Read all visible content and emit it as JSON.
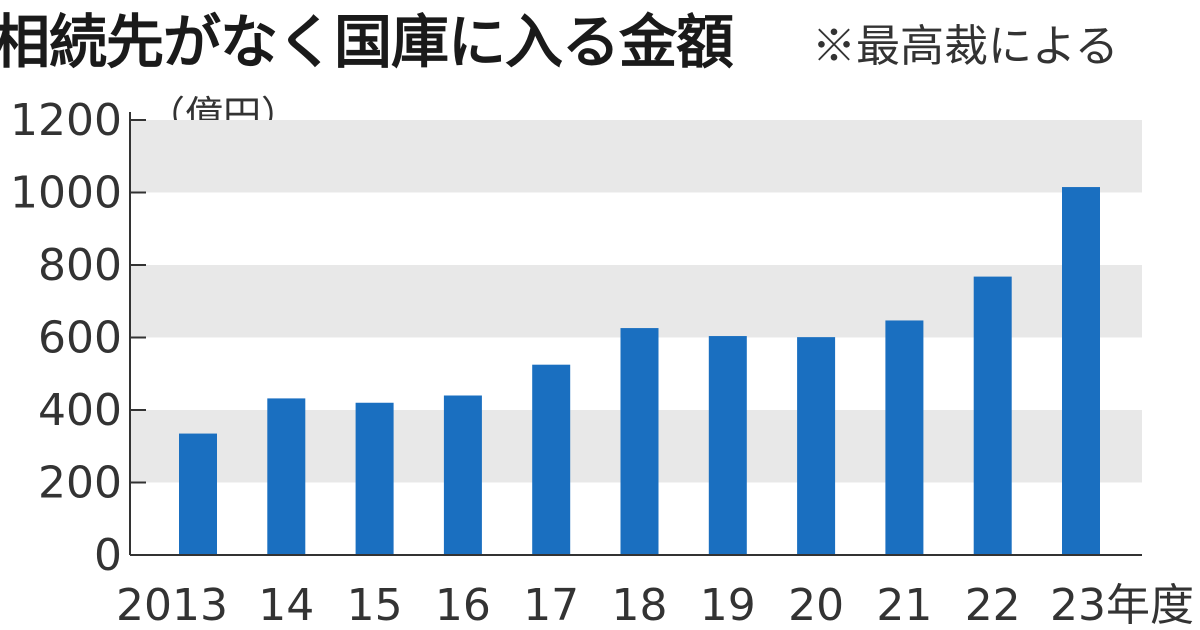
{
  "chart_data": {
    "type": "bar",
    "title": "相続先がなく国庫に入る金額",
    "subtitle": "※最高裁による",
    "unit_label": "（億円）",
    "categories": [
      "2013",
      "14",
      "15",
      "16",
      "17",
      "18",
      "19",
      "20",
      "21",
      "22",
      "23年度"
    ],
    "values": [
      335,
      432,
      420,
      440,
      525,
      626,
      604,
      601,
      647,
      768,
      1015
    ],
    "ylim": [
      0,
      1200
    ],
    "yticks": [
      0,
      200,
      400,
      600,
      800,
      1000,
      1200
    ],
    "ytick_labels": [
      "0",
      "200",
      "400",
      "600",
      "800",
      "1000",
      "1200"
    ],
    "bar_color": "#1a6fc0",
    "band_color": "#e8e8e8",
    "grid": "alternating-bands",
    "legend": "none"
  }
}
